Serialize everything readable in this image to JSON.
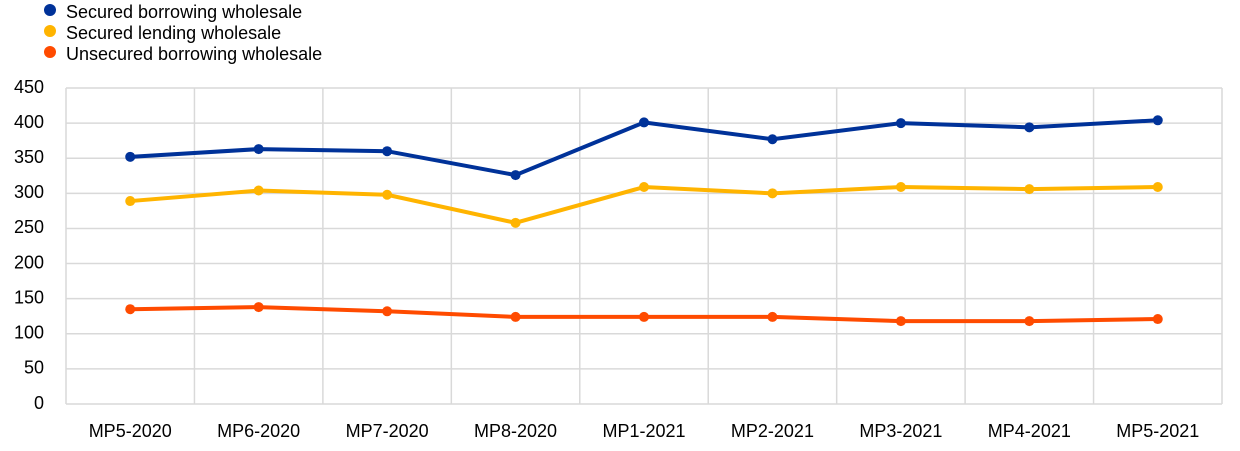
{
  "chart_data": {
    "type": "line",
    "categories": [
      "MP5-2020",
      "MP6-2020",
      "MP7-2020",
      "MP8-2020",
      "MP1-2021",
      "MP2-2021",
      "MP3-2021",
      "MP4-2021",
      "MP5-2021"
    ],
    "series": [
      {
        "name": "Secured borrowing wholesale",
        "color": "#003299",
        "values": [
          352,
          363,
          360,
          326,
          401,
          377,
          400,
          394,
          404
        ]
      },
      {
        "name": "Secured lending wholesale",
        "color": "#ffb400",
        "values": [
          289,
          304,
          298,
          258,
          309,
          300,
          309,
          306,
          309
        ]
      },
      {
        "name": "Unsecured borrowing wholesale",
        "color": "#ff4b00",
        "values": [
          135,
          138,
          132,
          124,
          124,
          124,
          118,
          118,
          121
        ]
      }
    ],
    "ylim": [
      0,
      450
    ],
    "yticks": [
      0,
      50,
      100,
      150,
      200,
      250,
      300,
      350,
      400,
      450
    ],
    "grid": true,
    "legend": "top-left"
  }
}
